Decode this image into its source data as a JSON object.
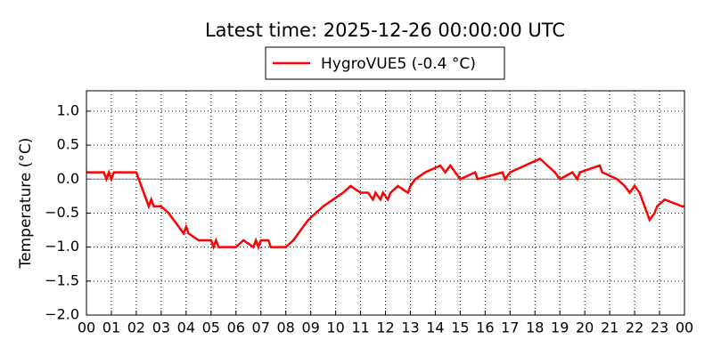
{
  "chart_data": {
    "type": "line",
    "title": "Latest time: 2025-12-26 00:00:00 UTC",
    "y_label": "Temperature (°C)",
    "x": [
      0,
      0.7,
      0.8,
      0.9,
      1.0,
      1.1,
      2.0,
      2.1,
      2.2,
      2.3,
      2.4,
      2.5,
      2.6,
      2.7,
      3.0,
      3.3,
      3.5,
      3.7,
      3.9,
      4.0,
      4.1,
      4.5,
      5.0,
      5.1,
      5.2,
      5.3,
      6.0,
      6.3,
      6.7,
      6.8,
      6.9,
      7.0,
      7.3,
      7.4,
      8.0,
      8.3,
      8.5,
      8.7,
      8.9,
      9.2,
      9.5,
      9.9,
      10.3,
      10.6,
      11.0,
      11.3,
      11.5,
      11.6,
      11.8,
      11.9,
      12.1,
      12.2,
      12.5,
      12.9,
      13.0,
      13.2,
      13.6,
      14.2,
      14.4,
      14.6,
      14.8,
      15.0,
      15.6,
      15.7,
      16.7,
      16.8,
      17.0,
      17.6,
      18.2,
      18.5,
      18.8,
      19.0,
      19.5,
      19.7,
      19.8,
      20.6,
      20.7,
      21.3,
      21.6,
      21.8,
      22.0,
      22.2,
      22.4,
      22.5,
      22.6,
      22.8,
      22.9,
      23.2,
      23.9,
      24.0
    ],
    "series": [
      {
        "name": "HygroVUE5 (-0.4 °C)",
        "color": "#ff0000",
        "values": [
          0.1,
          0.1,
          0.0,
          0.1,
          0.0,
          0.1,
          0.1,
          0.0,
          -0.1,
          -0.2,
          -0.3,
          -0.4,
          -0.3,
          -0.4,
          -0.4,
          -0.5,
          -0.6,
          -0.7,
          -0.8,
          -0.7,
          -0.8,
          -0.9,
          -0.9,
          -1.0,
          -0.9,
          -1.0,
          -1.0,
          -0.9,
          -1.0,
          -0.9,
          -1.0,
          -0.9,
          -0.9,
          -1.0,
          -1.0,
          -0.9,
          -0.8,
          -0.7,
          -0.6,
          -0.5,
          -0.4,
          -0.3,
          -0.2,
          -0.1,
          -0.2,
          -0.2,
          -0.3,
          -0.2,
          -0.3,
          -0.2,
          -0.3,
          -0.2,
          -0.1,
          -0.2,
          -0.1,
          0.0,
          0.1,
          0.2,
          0.1,
          0.2,
          0.1,
          0.0,
          0.1,
          0.0,
          0.1,
          0.0,
          0.1,
          0.2,
          0.3,
          0.2,
          0.1,
          0.0,
          0.1,
          0.0,
          0.1,
          0.2,
          0.1,
          0.0,
          -0.1,
          -0.2,
          -0.1,
          -0.2,
          -0.4,
          -0.5,
          -0.6,
          -0.5,
          -0.4,
          -0.3,
          -0.4,
          -0.4
        ]
      }
    ],
    "xlim": [
      0,
      24
    ],
    "xticks": [
      {
        "value": 0,
        "label": "00"
      },
      {
        "value": 1,
        "label": "01"
      },
      {
        "value": 2,
        "label": "02"
      },
      {
        "value": 3,
        "label": "03"
      },
      {
        "value": 4,
        "label": "04"
      },
      {
        "value": 5,
        "label": "05"
      },
      {
        "value": 6,
        "label": "06"
      },
      {
        "value": 7,
        "label": "07"
      },
      {
        "value": 8,
        "label": "08"
      },
      {
        "value": 9,
        "label": "09"
      },
      {
        "value": 10,
        "label": "10"
      },
      {
        "value": 11,
        "label": "11"
      },
      {
        "value": 12,
        "label": "12"
      },
      {
        "value": 13,
        "label": "13"
      },
      {
        "value": 14,
        "label": "14"
      },
      {
        "value": 15,
        "label": "15"
      },
      {
        "value": 16,
        "label": "16"
      },
      {
        "value": 17,
        "label": "17"
      },
      {
        "value": 18,
        "label": "18"
      },
      {
        "value": 19,
        "label": "19"
      },
      {
        "value": 20,
        "label": "20"
      },
      {
        "value": 21,
        "label": "21"
      },
      {
        "value": 22,
        "label": "22"
      },
      {
        "value": 23,
        "label": "23"
      },
      {
        "value": 24,
        "label": "00"
      }
    ],
    "ylim": [
      -2,
      1.3
    ],
    "yticks": [
      {
        "value": -2,
        "label": "−2.0"
      },
      {
        "value": -1.5,
        "label": "−1.5"
      },
      {
        "value": -1,
        "label": "−1.0"
      },
      {
        "value": -0.5,
        "label": "−0.5"
      },
      {
        "value": 0,
        "label": "0.0"
      },
      {
        "value": 0.5,
        "label": "0.5"
      },
      {
        "value": 1,
        "label": "1.0"
      }
    ],
    "reference_line": 0,
    "grid": true,
    "legend": "top"
  }
}
